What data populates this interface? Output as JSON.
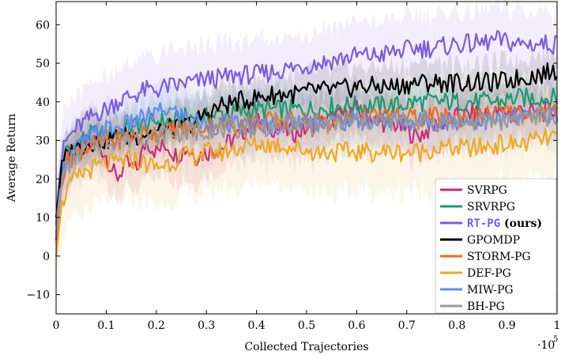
{
  "chart_data": {
    "type": "line",
    "xlabel": "Collected Trajectories",
    "ylabel": "Average Return",
    "x_multiplier_label": "·10",
    "x_multiplier_exp": "5",
    "xlim": [
      0,
      1
    ],
    "ylim": [
      -15,
      66
    ],
    "x_ticks": [
      0,
      0.1,
      0.2,
      0.3,
      0.4,
      0.5,
      0.6,
      0.7,
      0.8,
      0.9,
      1
    ],
    "x_tick_labels": [
      "0",
      "0.1",
      "0.2",
      "0.3",
      "0.4",
      "0.5",
      "0.6",
      "0.7",
      "0.8",
      "0.9",
      "1"
    ],
    "y_ticks": [
      -10,
      0,
      10,
      20,
      30,
      40,
      50,
      60
    ],
    "y_tick_labels": [
      "−10",
      "0",
      "10",
      "20",
      "30",
      "40",
      "50",
      "60"
    ],
    "grid": false,
    "legend_position": "bottom-right",
    "x": [
      0,
      0.01,
      0.02,
      0.04,
      0.06,
      0.08,
      0.1,
      0.12,
      0.14,
      0.16,
      0.18,
      0.2,
      0.22,
      0.24,
      0.26,
      0.28,
      0.3,
      0.33,
      0.36,
      0.4,
      0.44,
      0.48,
      0.52,
      0.56,
      0.6,
      0.64,
      0.68,
      0.72,
      0.76,
      0.8,
      0.84,
      0.88,
      0.92,
      0.96,
      1.0
    ],
    "series": [
      {
        "name": "SVRPG",
        "color": "#c72c7a",
        "band": 8,
        "values": [
          4,
          18,
          24,
          27,
          29,
          30,
          26,
          20,
          24,
          22,
          30,
          27,
          29,
          26,
          28,
          26,
          27,
          28,
          31,
          35,
          33,
          32,
          34,
          36,
          38,
          35,
          34,
          31,
          34,
          36,
          37,
          37,
          38,
          37,
          38
        ]
      },
      {
        "name": "SRVRPG",
        "color": "#1a9a72",
        "band": 6,
        "values": [
          10,
          22,
          27,
          29,
          31,
          32,
          31,
          32,
          33,
          34,
          34,
          35,
          35,
          35,
          36,
          36,
          36,
          37,
          37,
          38,
          38,
          38,
          38,
          39,
          39,
          39,
          39,
          40,
          40,
          40,
          40,
          40,
          41,
          41,
          41
        ]
      },
      {
        "name": "RT-PG",
        "color": "#7b5be0",
        "band": 10,
        "bold": true,
        "suffix": " (ours)",
        "values": [
          8,
          25,
          30,
          33,
          35,
          37,
          38,
          40,
          41,
          42,
          43,
          43,
          44,
          44,
          45,
          45,
          46,
          46,
          47,
          47,
          48,
          49,
          50,
          51,
          52,
          52,
          53,
          54,
          54,
          55,
          55,
          56,
          55,
          55,
          55
        ]
      },
      {
        "name": "GPOMDP",
        "color": "#000000",
        "band": 6,
        "values": [
          10,
          22,
          26,
          28,
          29,
          30,
          30,
          31,
          31,
          31,
          32,
          32,
          33,
          33,
          34,
          35,
          37,
          39,
          40,
          41,
          42,
          42,
          43,
          43,
          44,
          44,
          44,
          45,
          45,
          45,
          45,
          45,
          46,
          47,
          48
        ]
      },
      {
        "name": "STORM-PG",
        "color": "#ee6a1e",
        "band": 5,
        "values": [
          8,
          20,
          24,
          27,
          28,
          29,
          30,
          30,
          31,
          31,
          32,
          32,
          32,
          33,
          33,
          33,
          34,
          34,
          34,
          35,
          35,
          35,
          35,
          35,
          36,
          36,
          36,
          36,
          36,
          36,
          36,
          37,
          37,
          37,
          37
        ]
      },
      {
        "name": "DEF-PG",
        "color": "#f0a820",
        "band": 12,
        "values": [
          0,
          12,
          17,
          20,
          22,
          23,
          24,
          24,
          25,
          25,
          24,
          23,
          24,
          25,
          26,
          26,
          27,
          27,
          28,
          29,
          29,
          28,
          27,
          27,
          27,
          27,
          27,
          27,
          28,
          28,
          28,
          29,
          29,
          30,
          31
        ]
      },
      {
        "name": "MIW-PG",
        "color": "#5b8def",
        "band": 8,
        "values": [
          6,
          20,
          25,
          28,
          30,
          32,
          33,
          33,
          34,
          35,
          36,
          37,
          38,
          37,
          36,
          35,
          34,
          34,
          34,
          34,
          34,
          35,
          35,
          35,
          35,
          35,
          35,
          35,
          35,
          35,
          35,
          35,
          36,
          36,
          37
        ]
      },
      {
        "name": "BH-PG",
        "color": "#9a9a9a",
        "band": 10,
        "values": [
          5,
          18,
          23,
          26,
          28,
          29,
          30,
          30,
          30,
          31,
          31,
          31,
          32,
          32,
          32,
          32,
          33,
          33,
          33,
          33,
          34,
          34,
          34,
          34,
          35,
          35,
          35,
          35,
          35,
          35,
          35,
          35,
          36,
          36,
          36
        ]
      }
    ]
  }
}
